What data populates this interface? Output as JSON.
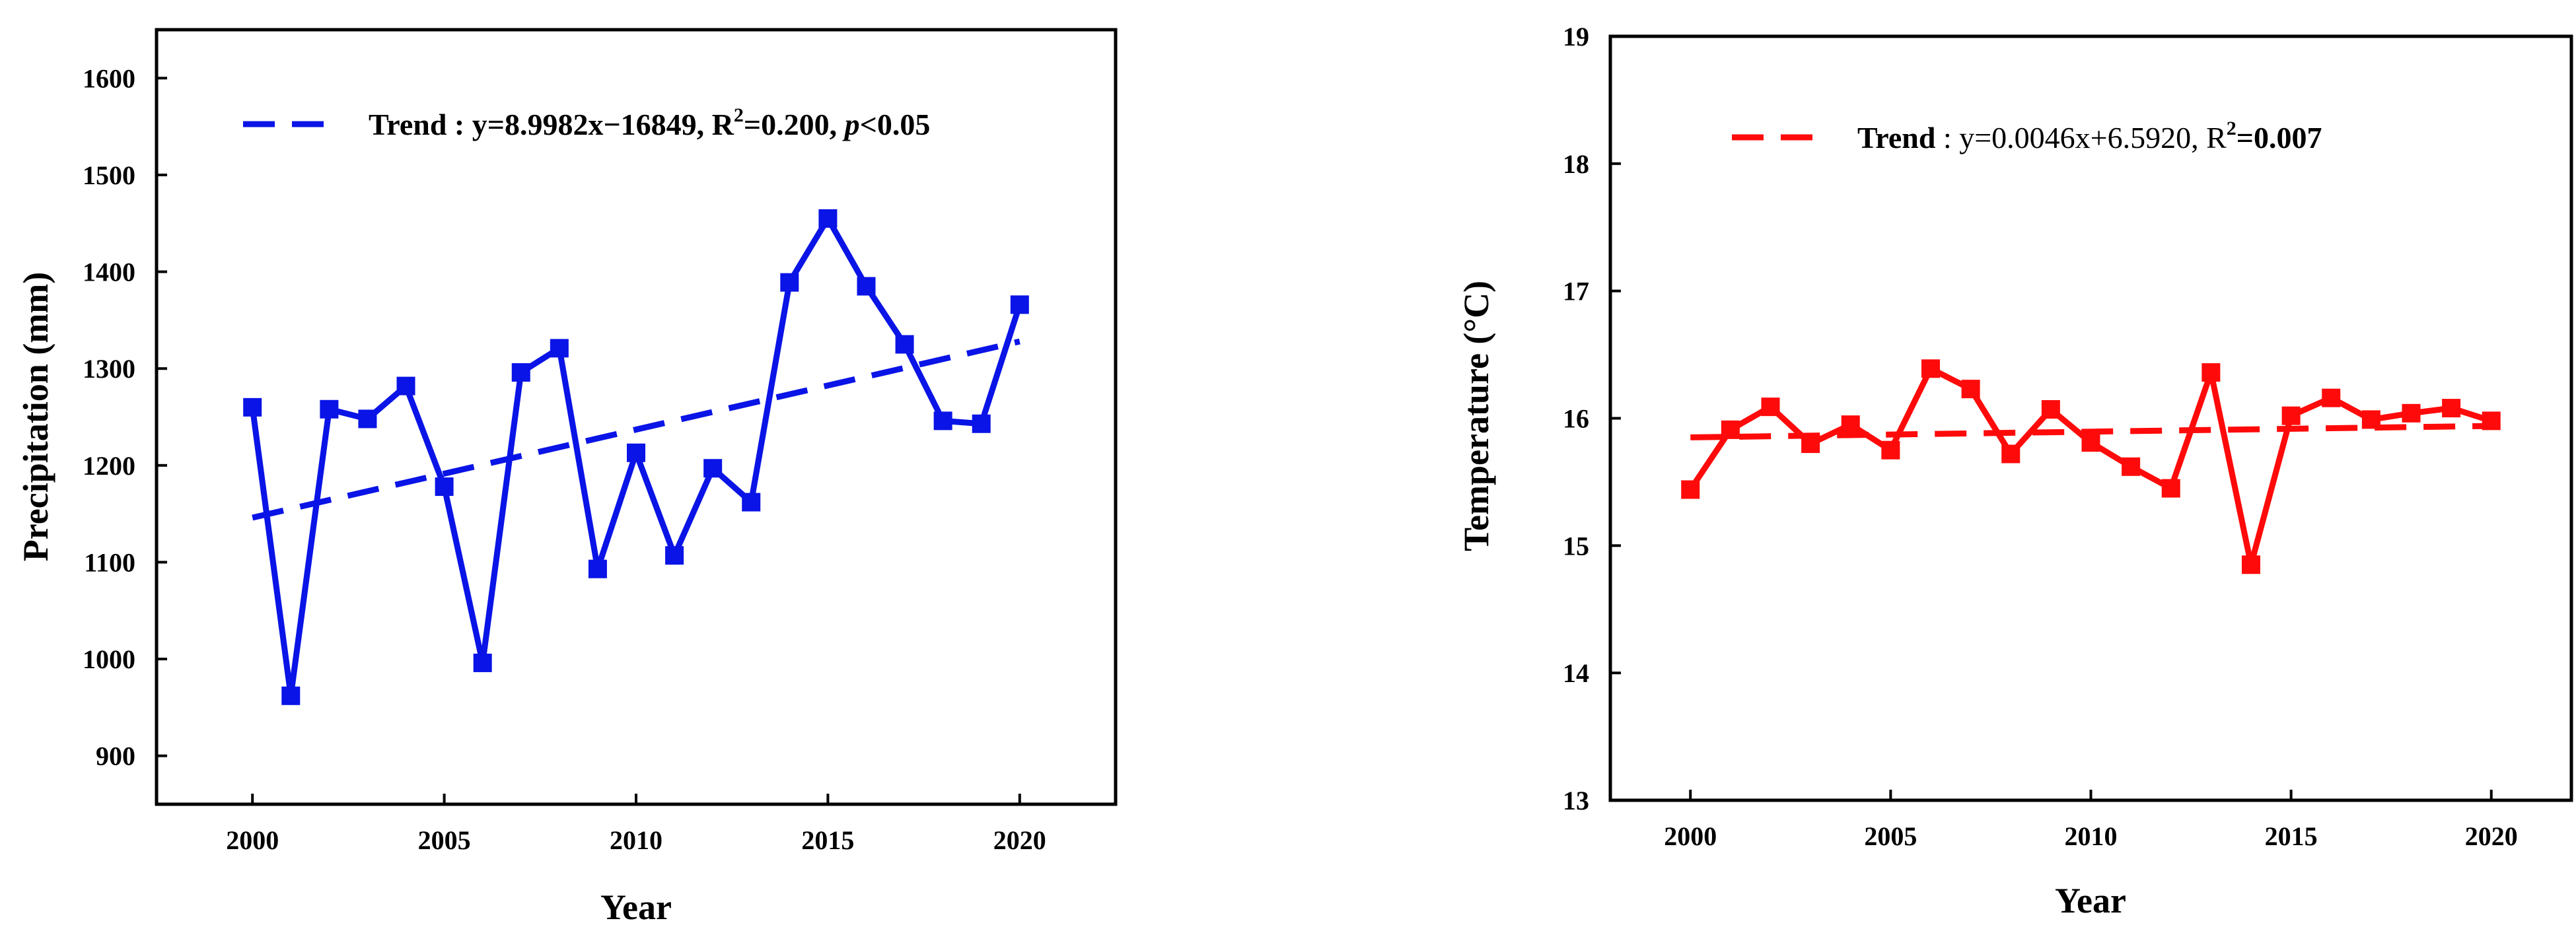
{
  "chart_data": [
    {
      "type": "line",
      "color": "#0a14e6",
      "xlabel": "Year",
      "ylabel": "Precipitation (mm)",
      "xlim": [
        1997.5,
        2022.5
      ],
      "ylim": [
        850,
        1650
      ],
      "xticks": [
        2000,
        2005,
        2010,
        2015,
        2020
      ],
      "yticks": [
        900,
        1000,
        1100,
        1200,
        1300,
        1400,
        1500,
        1600
      ],
      "x": [
        2000,
        2001,
        2002,
        2003,
        2004,
        2005,
        2006,
        2007,
        2008,
        2009,
        2010,
        2011,
        2012,
        2013,
        2014,
        2015,
        2016,
        2017,
        2018,
        2019,
        2020
      ],
      "series": [
        {
          "values": [
            1260,
            962,
            1258,
            1248,
            1282,
            1178,
            996,
            1296,
            1321,
            1093,
            1213,
            1107,
            1197,
            1162,
            1389,
            1455,
            1385,
            1325,
            1246,
            1243,
            1366
          ]
        }
      ],
      "trend": {
        "label_prefix": "Trend : y=8.9982x−16849, R",
        "label_sup": "2",
        "label_mid": "=0.200, ",
        "label_italic": "p",
        "label_suffix": "<0.05",
        "x": [
          2000,
          2020
        ],
        "y": [
          1146,
          1328
        ]
      },
      "legend_placement": "top-center"
    },
    {
      "type": "line",
      "color": "#ff0a0a",
      "xlabel": "Year",
      "ylabel": "Temperature (°C)",
      "xlim": [
        1998,
        2022
      ],
      "ylim": [
        13,
        19
      ],
      "xticks": [
        2000,
        2005,
        2010,
        2015,
        2020
      ],
      "yticks": [
        13,
        14,
        15,
        16,
        17,
        18,
        19
      ],
      "x": [
        2000,
        2001,
        2002,
        2003,
        2004,
        2005,
        2006,
        2007,
        2008,
        2009,
        2010,
        2011,
        2012,
        2013,
        2014,
        2015,
        2016,
        2017,
        2018,
        2019,
        2020
      ],
      "series": [
        {
          "values": [
            15.44,
            15.91,
            16.09,
            15.8,
            15.95,
            15.75,
            16.39,
            16.23,
            15.72,
            16.07,
            15.81,
            15.62,
            15.45,
            16.36,
            14.85,
            16.02,
            16.16,
            15.99,
            16.04,
            16.08,
            15.98
          ]
        }
      ],
      "trend": {
        "label_prefix": "Trend",
        "label_mid": " : y=0.0046x+6.5920, R",
        "label_sup": "2",
        "label_suffix": "=0.007",
        "x": [
          2000,
          2020
        ],
        "y": [
          15.85,
          15.94
        ]
      },
      "legend_placement": "top-center"
    }
  ]
}
